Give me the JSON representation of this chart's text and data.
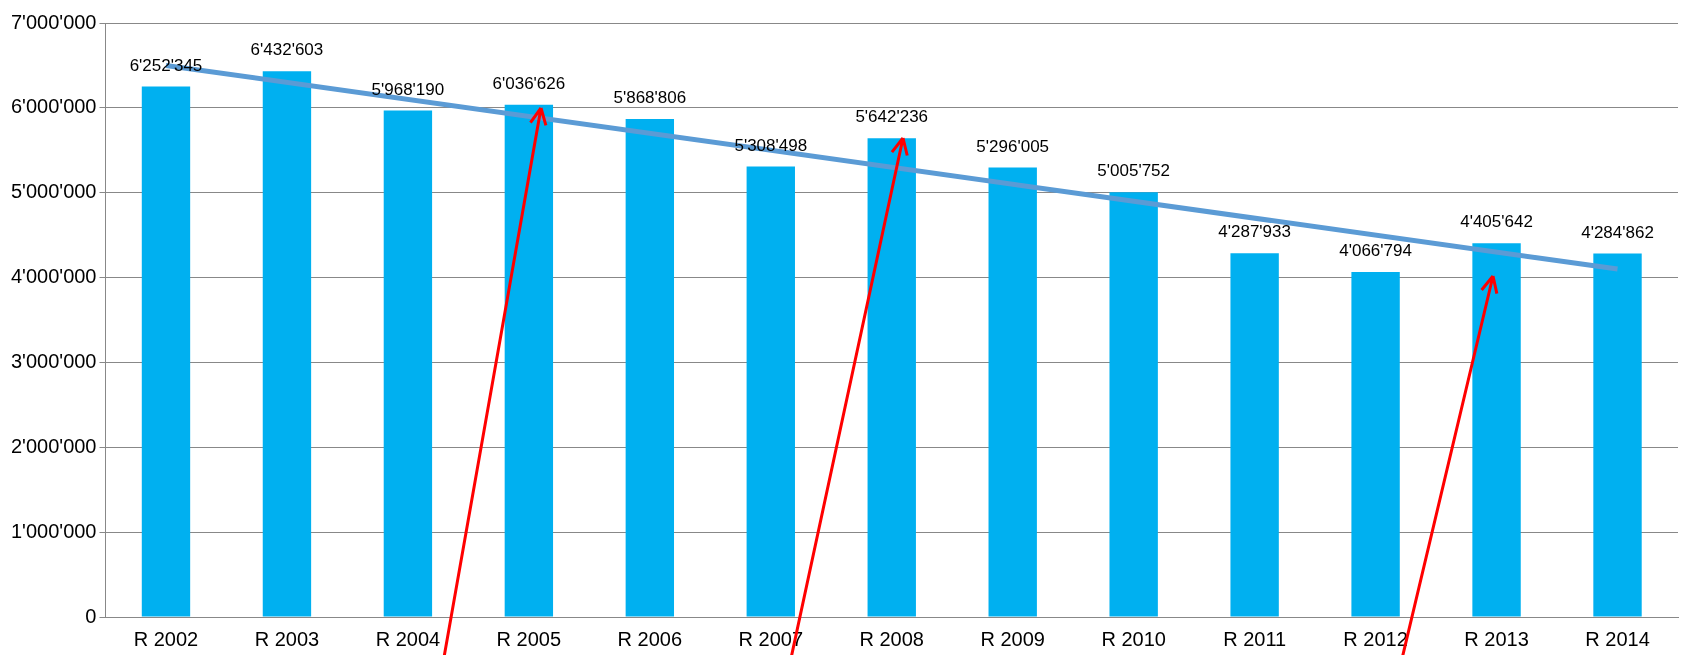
{
  "chart_data": {
    "type": "bar",
    "categories": [
      "R 2002",
      "R 2003",
      "R 2004",
      "R 2005",
      "R 2006",
      "R 2007",
      "R 2008",
      "R 2009",
      "R 2010",
      "R 2011",
      "R 2012",
      "R 2013",
      "R 2014"
    ],
    "series": [
      {
        "color": "#00b0f0",
        "values": [
          6252345,
          6432603,
          5968190,
          6036626,
          5868806,
          5308498,
          5642236,
          5296005,
          5005752,
          4287933,
          4066794,
          4405642,
          4284862
        ],
        "value_labels": [
          "6'252'345",
          "6'432'603",
          "5'968'190",
          "6'036'626",
          "5'868'806",
          "5'308'498",
          "5'642'236",
          "5'296'005",
          "5'005'752",
          "4'287'933",
          "4'066'794",
          "4'405'642",
          "4'284'862"
        ]
      },
      {
        "type": "line",
        "color": "#5b9bd5",
        "x": [
          "R 2002",
          "R 2014"
        ],
        "values": [
          6500000,
          4100000
        ]
      }
    ],
    "ylim": [
      0,
      7000000
    ],
    "yticks": [
      {
        "value": 0,
        "label": "0"
      },
      {
        "value": 1000000,
        "label": "1'000'000"
      },
      {
        "value": 2000000,
        "label": "2'000'000"
      },
      {
        "value": 3000000,
        "label": "3'000'000"
      },
      {
        "value": 4000000,
        "label": "4'000'000"
      },
      {
        "value": 5000000,
        "label": "5'000'000"
      },
      {
        "value": 6000000,
        "label": "6'000'000"
      },
      {
        "value": 7000000,
        "label": "7'000'000"
      }
    ],
    "grid": "y",
    "legend": false
  }
}
